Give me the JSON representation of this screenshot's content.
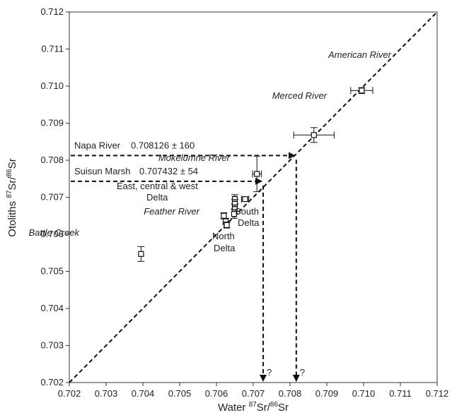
{
  "chart_data": {
    "type": "scatter",
    "title": "",
    "xlabel": {
      "pre": "Water ",
      "iso1": "87",
      "sr1": "Sr/",
      "iso2": "86",
      "sr2": "Sr"
    },
    "ylabel": {
      "pre": "Otoliths ",
      "iso1": "87",
      "sr1": "Sr/",
      "iso2": "86",
      "sr2": "Sr"
    },
    "xlim": [
      0.702,
      0.712
    ],
    "ylim": [
      0.702,
      0.712
    ],
    "x_ticks": [
      "0.702",
      "0.703",
      "0.704",
      "0.705",
      "0.706",
      "0.707",
      "0.708",
      "0.709",
      "0.710",
      "0.711",
      "0.712"
    ],
    "y_ticks": [
      "0.702",
      "0.703",
      "0.704",
      "0.705",
      "0.706",
      "0.707",
      "0.708",
      "0.709",
      "0.710",
      "0.711",
      "0.712"
    ],
    "grid": false,
    "one_to_one_line": {
      "x": [
        0.702,
        0.712
      ],
      "y": [
        0.702,
        0.712
      ],
      "style": "dashed"
    },
    "points": [
      {
        "label": "American River",
        "x": 0.70995,
        "y": 0.70988,
        "xerr": 0.0003,
        "yerr": 8e-05
      },
      {
        "label": "Merced River",
        "x": 0.70865,
        "y": 0.70868,
        "xerr": 0.00055,
        "yerr": 0.0002
      },
      {
        "label": "Mokelumne River",
        "x": 0.7071,
        "y": 0.70763,
        "xerr": 0.00012,
        "yerr": 0.00048
      },
      {
        "label": "Battle Creek",
        "x": 0.70395,
        "y": 0.70547,
        "xerr": 0,
        "yerr": 0.0002
      },
      {
        "label": "",
        "x": 0.70678,
        "y": 0.70695,
        "xerr": 0.0001,
        "yerr": 5e-05
      },
      {
        "label": "",
        "x": 0.7065,
        "y": 0.70695,
        "xerr": 4e-05,
        "yerr": 0.00012
      },
      {
        "label": "",
        "x": 0.7065,
        "y": 0.70682,
        "xerr": 4e-05,
        "yerr": 0.00012
      },
      {
        "label": "",
        "x": 0.7065,
        "y": 0.70668,
        "xerr": 4e-05,
        "yerr": 0.00012
      },
      {
        "label": "",
        "x": 0.70648,
        "y": 0.70655,
        "xerr": 4e-05,
        "yerr": 0.00012
      },
      {
        "label": "",
        "x": 0.7062,
        "y": 0.7065,
        "xerr": 6e-05,
        "yerr": 8e-05
      },
      {
        "label": "",
        "x": 0.70625,
        "y": 0.70635,
        "xerr": 5e-05,
        "yerr": 8e-05
      },
      {
        "label": "",
        "x": 0.70628,
        "y": 0.70625,
        "xerr": 5e-05,
        "yerr": 8e-05
      }
    ],
    "annotations": [
      {
        "name": "napa",
        "text": "Napa River",
        "value_text": "0.708126 ± 160",
        "y": 0.708126,
        "x_target": 0.70817
      },
      {
        "name": "suisun",
        "text": "Suisun Marsh",
        "value_text": "0.707432 ± 54",
        "y": 0.707432,
        "x_target": 0.70727
      }
    ],
    "arrow_question": "?",
    "group_labels": [
      {
        "name": "east-central-west-delta",
        "lines": [
          "East, central & west",
          "Delta"
        ],
        "italic": false
      },
      {
        "name": "feather-river",
        "lines": [
          "Feather River"
        ],
        "italic": true
      },
      {
        "name": "south-delta",
        "lines": [
          "South",
          "Delta"
        ],
        "italic": false
      },
      {
        "name": "north-delta",
        "lines": [
          "North",
          "Delta"
        ],
        "italic": false
      }
    ]
  }
}
